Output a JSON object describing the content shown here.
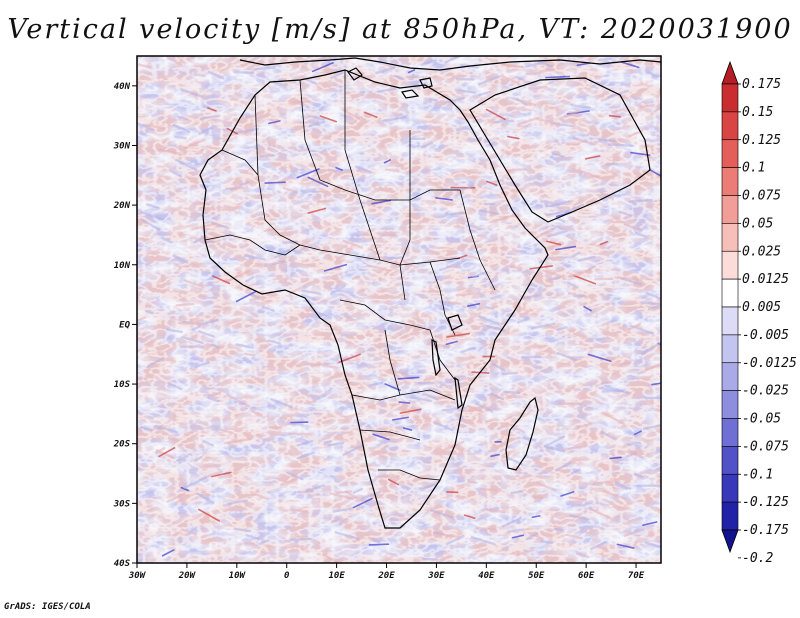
{
  "title": "Vertical velocity [m/s] at 850hPa, VT: 2020031900",
  "credit": "GrADS: IGES/COLA",
  "map": {
    "lon_range": [
      -30,
      75
    ],
    "lat_range": [
      -40,
      45
    ],
    "lat_ticks": [
      {
        "value": 40,
        "label": "40N"
      },
      {
        "value": 30,
        "label": "30N"
      },
      {
        "value": 20,
        "label": "20N"
      },
      {
        "value": 10,
        "label": "10N"
      },
      {
        "value": 0,
        "label": "EQ"
      },
      {
        "value": -10,
        "label": "10S"
      },
      {
        "value": -20,
        "label": "20S"
      },
      {
        "value": -30,
        "label": "30S"
      },
      {
        "value": -40,
        "label": "40S"
      }
    ],
    "lon_ticks": [
      {
        "value": -30,
        "label": "30W"
      },
      {
        "value": -20,
        "label": "20W"
      },
      {
        "value": -10,
        "label": "10W"
      },
      {
        "value": 0,
        "label": "0"
      },
      {
        "value": 10,
        "label": "10E"
      },
      {
        "value": 20,
        "label": "20E"
      },
      {
        "value": 30,
        "label": "30E"
      },
      {
        "value": 40,
        "label": "40E"
      },
      {
        "value": 50,
        "label": "50E"
      },
      {
        "value": 60,
        "label": "60E"
      },
      {
        "value": 70,
        "label": "70E"
      }
    ]
  },
  "colorbar": {
    "labels": [
      "0.175",
      "0.15",
      "0.125",
      "0.1",
      "0.075",
      "0.05",
      "0.025",
      "0.0125",
      "0.005",
      "-0.005",
      "-0.0125",
      "-0.025",
      "-0.05",
      "-0.075",
      "-0.1",
      "-0.125",
      "-0.175",
      "-0.2"
    ],
    "colors": [
      "#b41e24",
      "#c92d30",
      "#d94444",
      "#e45e5a",
      "#ec7c76",
      "#f29e98",
      "#f7bfba",
      "#fbdcd8",
      "#ffffff",
      "#dcdcf6",
      "#c4c4f0",
      "#aaaae8",
      "#8e8edf",
      "#7070d4",
      "#5252c8",
      "#3838ba",
      "#2222a8",
      "#121290"
    ]
  },
  "field": {
    "background": "#ececf8",
    "positive_color": "#e8b4b8",
    "negative_color": "#b4b4e8",
    "strong_positive": "#d04848",
    "strong_negative": "#4848d0"
  }
}
